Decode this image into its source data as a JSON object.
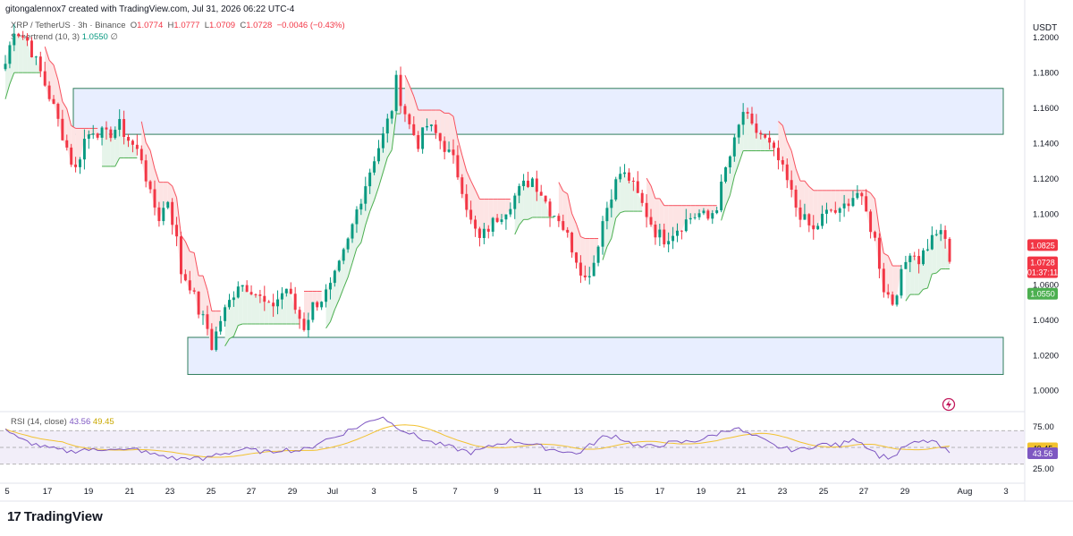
{
  "header": {
    "attribution": "gitongalennox7 created with TradingView.com, Jul 31, 2026 06:22 UTC-4"
  },
  "legend": {
    "symbol": "XRP / TetherUS · 3h · Binance",
    "o_label": "O",
    "o": "1.0774",
    "h_label": "H",
    "h": "1.0777",
    "l_label": "L",
    "l": "1.0709",
    "c_label": "C",
    "c": "1.0728",
    "change": "−0.0046 (−0.43%)",
    "supertrend": "Supertrend (10, 3)",
    "supertrend_value": "1.0550",
    "supertrend_flag": "∅"
  },
  "rsi_legend": {
    "label": "RSI (14, close)",
    "rsi": "43.56",
    "ma": "49.45"
  },
  "currency": "USDT",
  "price_badges": {
    "current_upper": "1.0825",
    "last_price": "1.0728",
    "countdown": "01:37:11",
    "supertrend": "1.0550"
  },
  "rsi_badges": {
    "ma": "49.45",
    "rsi": "43.56"
  },
  "footer": {
    "brand": "TradingView",
    "logo_glyph": "17"
  },
  "colors": {
    "up": "#089981",
    "down": "#f23645",
    "zone_fill": "#e8eeff",
    "zone_stroke": "#2e7d5b",
    "rsi_line": "#7e57c2",
    "rsi_ma": "#f2c230",
    "st_up_fill": "#e6f4ea",
    "st_down_fill": "#fde4e4"
  },
  "chart_data": [
    {
      "type": "candlestick",
      "title": "XRP / TetherUS · 3h · Binance",
      "x_tick_labels": [
        "5",
        "17",
        "19",
        "21",
        "23",
        "25",
        "27",
        "29",
        "Jul",
        "3",
        "5",
        "7",
        "9",
        "11",
        "13",
        "15",
        "17",
        "19",
        "21",
        "23",
        "25",
        "27",
        "29",
        "Aug",
        "3"
      ],
      "y_tick_labels": [
        "1.2000",
        "1.1800",
        "1.1600",
        "1.1400",
        "1.1200",
        "1.1000",
        "1.0600",
        "1.0400",
        "1.0200",
        "1.0000"
      ],
      "ylim": [
        0.992,
        1.216
      ],
      "zones": [
        {
          "name": "resistance",
          "y_low": 1.145,
          "y_high": 1.171
        },
        {
          "name": "support",
          "y_low": 1.009,
          "y_high": 1.03
        }
      ],
      "price_path": [
        [
          0,
          1.185
        ],
        [
          2,
          1.205
        ],
        [
          5,
          1.198
        ],
        [
          8,
          1.18
        ],
        [
          11,
          1.16
        ],
        [
          13,
          1.145
        ],
        [
          15,
          1.13
        ],
        [
          16,
          1.125
        ],
        [
          18,
          1.142
        ],
        [
          20,
          1.148
        ],
        [
          23,
          1.144
        ],
        [
          26,
          1.15
        ],
        [
          28,
          1.142
        ],
        [
          31,
          1.132
        ],
        [
          33,
          1.11
        ],
        [
          35,
          1.098
        ],
        [
          37,
          1.108
        ],
        [
          39,
          1.085
        ],
        [
          40,
          1.067
        ],
        [
          42,
          1.06
        ],
        [
          44,
          1.045
        ],
        [
          46,
          1.035
        ],
        [
          47,
          1.025
        ],
        [
          49,
          1.04
        ],
        [
          51,
          1.05
        ],
        [
          53,
          1.061
        ],
        [
          56,
          1.058
        ],
        [
          58,
          1.052
        ],
        [
          60,
          1.046
        ],
        [
          62,
          1.052
        ],
        [
          64,
          1.058
        ],
        [
          66,
          1.046
        ],
        [
          68,
          1.036
        ],
        [
          70,
          1.048
        ],
        [
          72,
          1.052
        ],
        [
          74,
          1.058
        ],
        [
          76,
          1.07
        ],
        [
          78,
          1.084
        ],
        [
          80,
          1.102
        ],
        [
          82,
          1.117
        ],
        [
          84,
          1.132
        ],
        [
          86,
          1.144
        ],
        [
          88,
          1.16
        ],
        [
          89,
          1.175
        ],
        [
          90,
          1.165
        ],
        [
          92,
          1.15
        ],
        [
          94,
          1.14
        ],
        [
          96,
          1.15
        ],
        [
          98,
          1.145
        ],
        [
          100,
          1.138
        ],
        [
          102,
          1.13
        ],
        [
          104,
          1.115
        ],
        [
          106,
          1.095
        ],
        [
          108,
          1.085
        ],
        [
          110,
          1.092
        ],
        [
          112,
          1.098
        ],
        [
          114,
          1.103
        ],
        [
          116,
          1.11
        ],
        [
          118,
          1.116
        ],
        [
          120,
          1.12
        ],
        [
          122,
          1.112
        ],
        [
          124,
          1.102
        ],
        [
          126,
          1.098
        ],
        [
          128,
          1.087
        ],
        [
          130,
          1.075
        ],
        [
          132,
          1.063
        ],
        [
          134,
          1.073
        ],
        [
          136,
          1.096
        ],
        [
          138,
          1.112
        ],
        [
          140,
          1.123
        ],
        [
          142,
          1.12
        ],
        [
          144,
          1.11
        ],
        [
          146,
          1.1
        ],
        [
          148,
          1.09
        ],
        [
          150,
          1.086
        ],
        [
          152,
          1.09
        ],
        [
          154,
          1.094
        ],
        [
          156,
          1.098
        ],
        [
          158,
          1.1
        ],
        [
          160,
          1.097
        ],
        [
          162,
          1.105
        ],
        [
          164,
          1.125
        ],
        [
          166,
          1.14
        ],
        [
          168,
          1.158
        ],
        [
          170,
          1.148
        ],
        [
          172,
          1.145
        ],
        [
          174,
          1.138
        ],
        [
          176,
          1.13
        ],
        [
          178,
          1.118
        ],
        [
          180,
          1.104
        ],
        [
          182,
          1.096
        ],
        [
          184,
          1.09
        ],
        [
          186,
          1.098
        ],
        [
          188,
          1.102
        ],
        [
          190,
          1.1
        ],
        [
          192,
          1.108
        ],
        [
          194,
          1.112
        ],
        [
          196,
          1.1
        ],
        [
          198,
          1.085
        ],
        [
          200,
          1.058
        ],
        [
          202,
          1.05
        ],
        [
          204,
          1.065
        ],
        [
          206,
          1.08
        ],
        [
          208,
          1.074
        ],
        [
          210,
          1.082
        ],
        [
          212,
          1.09
        ],
        [
          214,
          1.085
        ],
        [
          215,
          1.073
        ]
      ],
      "rsi_path": [
        [
          0,
          72
        ],
        [
          3,
          60
        ],
        [
          6,
          55
        ],
        [
          9,
          50
        ],
        [
          12,
          47
        ],
        [
          15,
          45
        ],
        [
          18,
          48
        ],
        [
          21,
          46
        ],
        [
          24,
          50
        ],
        [
          27,
          46
        ],
        [
          30,
          48
        ],
        [
          33,
          42
        ],
        [
          36,
          40
        ],
        [
          39,
          36
        ],
        [
          42,
          38
        ],
        [
          45,
          35
        ],
        [
          48,
          42
        ],
        [
          51,
          44
        ],
        [
          54,
          48
        ],
        [
          57,
          46
        ],
        [
          60,
          44
        ],
        [
          63,
          48
        ],
        [
          66,
          46
        ],
        [
          69,
          48
        ],
        [
          72,
          58
        ],
        [
          75,
          62
        ],
        [
          78,
          70
        ],
        [
          81,
          76
        ],
        [
          84,
          84
        ],
        [
          86,
          87
        ],
        [
          88,
          78
        ],
        [
          91,
          70
        ],
        [
          94,
          62
        ],
        [
          97,
          56
        ],
        [
          100,
          52
        ],
        [
          103,
          48
        ],
        [
          106,
          44
        ],
        [
          109,
          48
        ],
        [
          112,
          54
        ],
        [
          115,
          58
        ],
        [
          118,
          56
        ],
        [
          121,
          52
        ],
        [
          124,
          48
        ],
        [
          127,
          46
        ],
        [
          130,
          42
        ],
        [
          133,
          52
        ],
        [
          136,
          62
        ],
        [
          139,
          64
        ],
        [
          142,
          56
        ],
        [
          145,
          50
        ],
        [
          148,
          52
        ],
        [
          151,
          55
        ],
        [
          154,
          56
        ],
        [
          157,
          58
        ],
        [
          160,
          62
        ],
        [
          163,
          68
        ],
        [
          166,
          74
        ],
        [
          169,
          66
        ],
        [
          172,
          60
        ],
        [
          175,
          52
        ],
        [
          178,
          48
        ],
        [
          181,
          47
        ],
        [
          184,
          52
        ],
        [
          187,
          54
        ],
        [
          190,
          52
        ],
        [
          193,
          62
        ],
        [
          196,
          52
        ],
        [
          199,
          40
        ],
        [
          202,
          38
        ],
        [
          205,
          52
        ],
        [
          208,
          56
        ],
        [
          211,
          58
        ],
        [
          213,
          50
        ],
        [
          215,
          44
        ]
      ],
      "rsi_ylim": [
        18,
        82
      ],
      "rsi_ticks": [
        "75.00",
        "25.00"
      ]
    }
  ]
}
